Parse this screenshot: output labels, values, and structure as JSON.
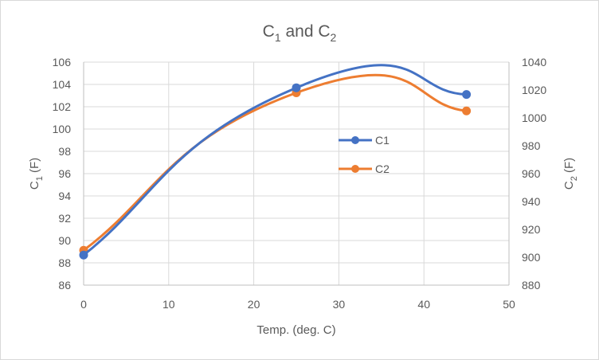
{
  "chart_data": {
    "type": "line",
    "title": {
      "main": "C",
      "sub1": "1",
      "mid": " and C",
      "sub2": "2"
    },
    "x": [
      0,
      25,
      45
    ],
    "x_axis": {
      "label": "Temp. (deg. C)",
      "min": 0,
      "max": 50,
      "step": 10,
      "ticks": [
        "0",
        "10",
        "20",
        "30",
        "40",
        "50"
      ]
    },
    "y_left": {
      "label_main": "C",
      "label_sub": "1",
      "label_unit": " (F)",
      "min": 86,
      "max": 106,
      "step": 2,
      "ticks": [
        "86",
        "88",
        "90",
        "92",
        "94",
        "96",
        "98",
        "100",
        "102",
        "104",
        "106"
      ]
    },
    "y_right": {
      "label_main": "C",
      "label_sub": "2",
      "label_unit": " (F)",
      "min": 880,
      "max": 1040,
      "step": 20,
      "ticks": [
        "880",
        "900",
        "920",
        "940",
        "960",
        "980",
        "1000",
        "1020",
        "1040"
      ]
    },
    "series": [
      {
        "name": "C1",
        "axis": "left",
        "color": "#4472c4",
        "values": [
          88.7,
          103.7,
          103.1
        ]
      },
      {
        "name": "C2",
        "axis": "right",
        "color": "#ed7d31",
        "values": [
          905,
          1018,
          1005
        ]
      }
    ],
    "gridlines": true,
    "legend_position": "inside-right",
    "smooth": true
  }
}
